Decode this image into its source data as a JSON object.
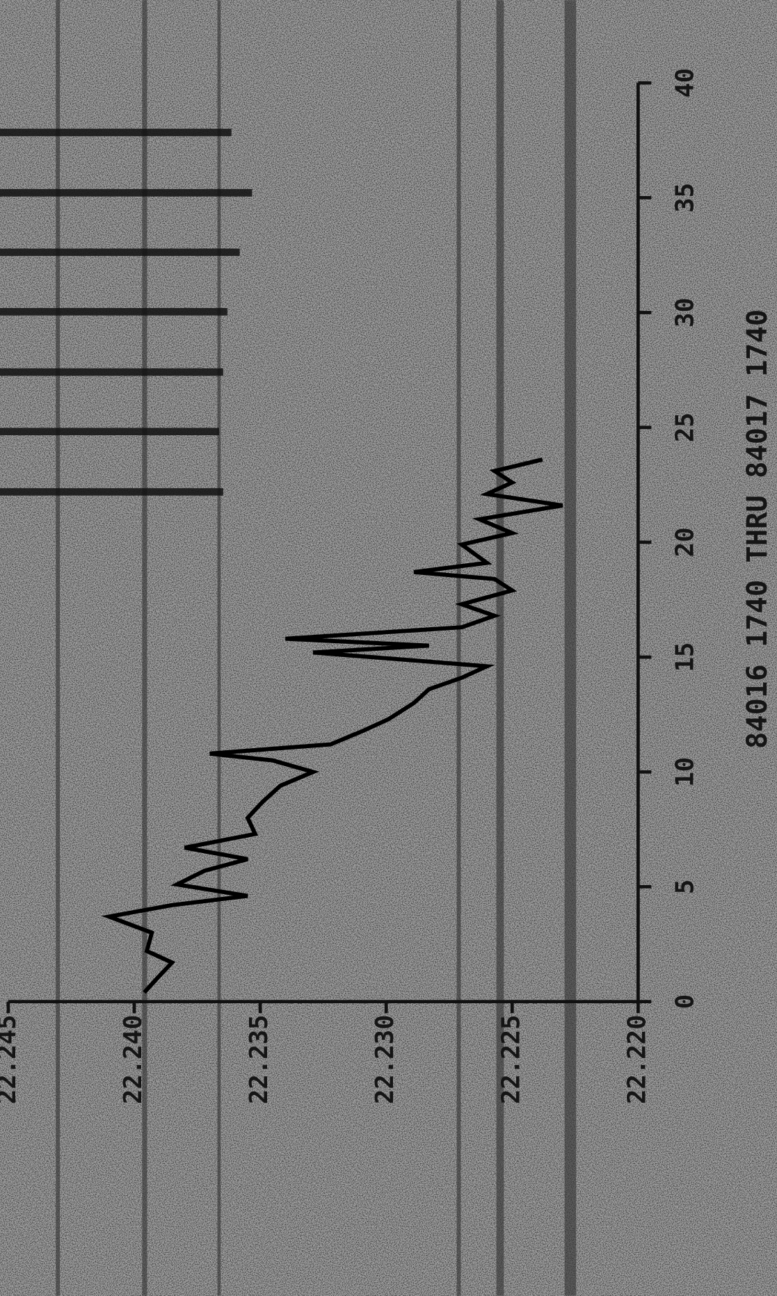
{
  "chart_data": {
    "type": "line",
    "title": "84016 1740 THRU 84017 1740",
    "x": [
      0.4,
      1.0,
      1.7,
      2.2,
      3.0,
      3.7,
      4.2,
      4.6,
      5.1,
      5.7,
      6.2,
      6.7,
      7.3,
      8.0,
      8.7,
      9.4,
      10.0,
      10.5,
      10.8,
      11.2,
      11.8,
      12.3,
      13.0,
      13.6,
      14.1,
      14.6,
      15.2,
      15.5,
      15.8,
      16.3,
      16.8,
      17.3,
      17.9,
      18.4,
      18.7,
      19.1,
      19.9,
      20.4,
      21.0,
      21.6,
      22.1,
      22.6,
      23.1,
      23.6
    ],
    "series": [
      {
        "color": "#000000",
        "values": [
          22.2396,
          22.2391,
          22.2385,
          22.2395,
          22.2393,
          22.241,
          22.2385,
          22.2355,
          22.2383,
          22.2372,
          22.2355,
          22.238,
          22.2352,
          22.2355,
          22.2349,
          22.2342,
          22.2329,
          22.2345,
          22.237,
          22.2322,
          22.2309,
          22.2299,
          22.2289,
          22.2283,
          22.227,
          22.226,
          22.2329,
          22.2283,
          22.234,
          22.227,
          22.2257,
          22.227,
          22.225,
          22.2257,
          22.2289,
          22.226,
          22.227,
          22.225,
          22.2263,
          22.223,
          22.226,
          22.225,
          22.2257,
          22.2238
        ]
      }
    ],
    "xlim": [
      0,
      40
    ],
    "xticks": [
      0,
      5,
      10,
      15,
      20,
      25,
      30,
      35,
      40
    ],
    "ylim": [
      22.22,
      22.245
    ],
    "yticks": [
      {
        "value": 22.22,
        "label": "22.220"
      },
      {
        "value": 22.225,
        "label": "22.225"
      },
      {
        "value": 22.23,
        "label": "22.230"
      },
      {
        "value": 22.235,
        "label": "22.235"
      },
      {
        "value": 22.24,
        "label": "22.240"
      },
      {
        "value": 22.245,
        "label": "22.245"
      }
    ]
  }
}
